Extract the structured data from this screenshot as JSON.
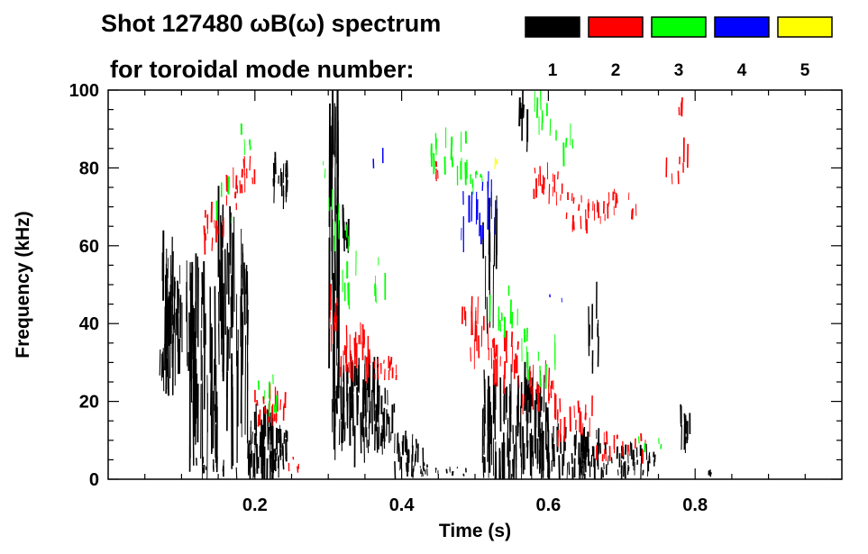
{
  "chart_data": {
    "type": "spectrogram",
    "title_line1": "Shot 127480 ωB(ω) spectrum",
    "title_line2": "for toroidal mode number:",
    "xlabel": "Time (s)",
    "ylabel": "Frequency (kHz)",
    "xlim": [
      0.0,
      1.0
    ],
    "ylim": [
      0,
      100
    ],
    "xticks": [
      0.2,
      0.4,
      0.6,
      0.8
    ],
    "xtick_labels": [
      "0.2",
      "0.4",
      "0.6",
      "0.8"
    ],
    "yticks": [
      0,
      20,
      40,
      60,
      80,
      100
    ],
    "ytick_labels": [
      "0",
      "20",
      "40",
      "60",
      "80",
      "100"
    ],
    "legend": [
      {
        "label": "1",
        "color": "#000000"
      },
      {
        "label": "2",
        "color": "#ff0000"
      },
      {
        "label": "3",
        "color": "#00ff00"
      },
      {
        "label": "4",
        "color": "#0000ff"
      },
      {
        "label": "5",
        "color": "#ffff00"
      }
    ],
    "series": [
      {
        "name": "n=1",
        "color": "#000000",
        "blobs": [
          {
            "t0": 0.07,
            "t1": 0.12,
            "f0": 28,
            "f1": 56,
            "density": 30
          },
          {
            "t0": 0.11,
            "t1": 0.16,
            "f0": 6,
            "f1": 56,
            "density": 20
          },
          {
            "t0": 0.15,
            "t1": 0.17,
            "f0": 30,
            "f1": 66,
            "density": 12
          },
          {
            "t0": 0.16,
            "t1": 0.19,
            "f0": 10,
            "f1": 58,
            "density": 10
          },
          {
            "t0": 0.12,
            "t1": 0.2,
            "f0": 0,
            "f1": 5,
            "density": 6
          },
          {
            "t0": 0.18,
            "t1": 0.19,
            "f0": 40,
            "f1": 62,
            "density": 5
          },
          {
            "t0": 0.19,
            "t1": 0.225,
            "f0": 2,
            "f1": 16,
            "density": 28
          },
          {
            "t0": 0.22,
            "t1": 0.245,
            "f0": 3,
            "f1": 12,
            "density": 12
          },
          {
            "t0": 0.225,
            "t1": 0.245,
            "f0": 72,
            "f1": 82,
            "density": 8
          },
          {
            "t0": 0.305,
            "t1": 0.37,
            "f0": 8,
            "f1": 28,
            "density": 36
          },
          {
            "t0": 0.365,
            "t1": 0.39,
            "f0": 10,
            "f1": 22,
            "density": 12
          },
          {
            "t0": 0.3,
            "t1": 0.315,
            "f0": 30,
            "f1": 98,
            "density": 12
          },
          {
            "t0": 0.31,
            "t1": 0.33,
            "f0": 58,
            "f1": 70,
            "density": 4
          },
          {
            "t0": 0.39,
            "t1": 0.43,
            "f0": 1,
            "f1": 10,
            "density": 16
          },
          {
            "t0": 0.425,
            "t1": 0.44,
            "f0": 1,
            "f1": 4,
            "density": 4
          },
          {
            "t0": 0.44,
            "t1": 0.5,
            "f0": 1,
            "f1": 3,
            "density": 5
          },
          {
            "t0": 0.51,
            "t1": 0.6,
            "f0": 2,
            "f1": 24,
            "density": 52
          },
          {
            "t0": 0.6,
            "t1": 0.67,
            "f0": 1,
            "f1": 12,
            "density": 30
          },
          {
            "t0": 0.67,
            "t1": 0.745,
            "f0": 1,
            "f1": 8,
            "density": 20
          },
          {
            "t0": 0.51,
            "t1": 0.53,
            "f0": 40,
            "f1": 68,
            "density": 5
          },
          {
            "t0": 0.56,
            "t1": 0.575,
            "f0": 85,
            "f1": 100,
            "density": 3
          },
          {
            "t0": 0.655,
            "t1": 0.67,
            "f0": 30,
            "f1": 52,
            "density": 3
          },
          {
            "t0": 0.665,
            "t1": 0.675,
            "f0": 36,
            "f1": 42,
            "density": 2
          },
          {
            "t0": 0.78,
            "t1": 0.795,
            "f0": 8,
            "f1": 18,
            "density": 6
          },
          {
            "t0": 0.815,
            "t1": 0.825,
            "f0": 1,
            "f1": 3,
            "density": 2
          }
        ]
      },
      {
        "name": "n=2",
        "color": "#ff0000",
        "blobs": [
          {
            "t0": 0.13,
            "t1": 0.16,
            "f0": 60,
            "f1": 70,
            "density": 6
          },
          {
            "t0": 0.16,
            "t1": 0.18,
            "f0": 70,
            "f1": 78,
            "density": 4
          },
          {
            "t0": 0.18,
            "t1": 0.2,
            "f0": 74,
            "f1": 82,
            "density": 4
          },
          {
            "t0": 0.2,
            "t1": 0.245,
            "f0": 15,
            "f1": 23,
            "density": 10
          },
          {
            "t0": 0.245,
            "t1": 0.26,
            "f0": 2,
            "f1": 6,
            "density": 2
          },
          {
            "t0": 0.3,
            "t1": 0.315,
            "f0": 36,
            "f1": 48,
            "density": 5
          },
          {
            "t0": 0.315,
            "t1": 0.36,
            "f0": 27,
            "f1": 38,
            "density": 12
          },
          {
            "t0": 0.36,
            "t1": 0.395,
            "f0": 26,
            "f1": 31,
            "density": 8
          },
          {
            "t0": 0.44,
            "t1": 0.46,
            "f0": 77,
            "f1": 82,
            "density": 2
          },
          {
            "t0": 0.48,
            "t1": 0.52,
            "f0": 32,
            "f1": 44,
            "density": 8
          },
          {
            "t0": 0.52,
            "t1": 0.56,
            "f0": 24,
            "f1": 36,
            "density": 10
          },
          {
            "t0": 0.56,
            "t1": 0.61,
            "f0": 18,
            "f1": 28,
            "density": 10
          },
          {
            "t0": 0.61,
            "t1": 0.66,
            "f0": 10,
            "f1": 20,
            "density": 8
          },
          {
            "t0": 0.66,
            "t1": 0.74,
            "f0": 5,
            "f1": 11,
            "density": 8
          },
          {
            "t0": 0.575,
            "t1": 0.62,
            "f0": 72,
            "f1": 80,
            "density": 8
          },
          {
            "t0": 0.62,
            "t1": 0.68,
            "f0": 64,
            "f1": 73,
            "density": 10
          },
          {
            "t0": 0.68,
            "t1": 0.72,
            "f0": 68,
            "f1": 74,
            "density": 6
          },
          {
            "t0": 0.76,
            "t1": 0.79,
            "f0": 76,
            "f1": 86,
            "density": 3
          },
          {
            "t0": 0.775,
            "t1": 0.785,
            "f0": 88,
            "f1": 98,
            "density": 2
          }
        ]
      },
      {
        "name": "n=3",
        "color": "#00ff00",
        "blobs": [
          {
            "t0": 0.14,
            "t1": 0.17,
            "f0": 66,
            "f1": 76,
            "density": 2
          },
          {
            "t0": 0.18,
            "t1": 0.2,
            "f0": 84,
            "f1": 92,
            "density": 2
          },
          {
            "t0": 0.2,
            "t1": 0.23,
            "f0": 18,
            "f1": 26,
            "density": 3
          },
          {
            "t0": 0.26,
            "t1": 0.3,
            "f0": 78,
            "f1": 82,
            "density": 1
          },
          {
            "t0": 0.3,
            "t1": 0.33,
            "f0": 60,
            "f1": 72,
            "density": 3
          },
          {
            "t0": 0.31,
            "t1": 0.39,
            "f0": 45,
            "f1": 56,
            "density": 5
          },
          {
            "t0": 0.44,
            "t1": 0.49,
            "f0": 78,
            "f1": 88,
            "density": 8
          },
          {
            "t0": 0.49,
            "t1": 0.51,
            "f0": 74,
            "f1": 80,
            "density": 3
          },
          {
            "t0": 0.52,
            "t1": 0.56,
            "f0": 38,
            "f1": 50,
            "density": 5
          },
          {
            "t0": 0.56,
            "t1": 0.62,
            "f0": 26,
            "f1": 38,
            "density": 5
          },
          {
            "t0": 0.58,
            "t1": 0.62,
            "f0": 88,
            "f1": 98,
            "density": 4
          },
          {
            "t0": 0.62,
            "t1": 0.65,
            "f0": 80,
            "f1": 90,
            "density": 2
          },
          {
            "t0": 0.72,
            "t1": 0.76,
            "f0": 8,
            "f1": 12,
            "density": 2
          }
        ]
      },
      {
        "name": "n=4",
        "color": "#0000ff",
        "blobs": [
          {
            "t0": 0.48,
            "t1": 0.53,
            "f0": 62,
            "f1": 76,
            "density": 8
          },
          {
            "t0": 0.36,
            "t1": 0.38,
            "f0": 78,
            "f1": 84,
            "density": 1
          },
          {
            "t0": 0.6,
            "t1": 0.62,
            "f0": 44,
            "f1": 48,
            "density": 1
          }
        ]
      },
      {
        "name": "n=5",
        "color": "#ffff00",
        "blobs": [
          {
            "t0": 0.52,
            "t1": 0.535,
            "f0": 76,
            "f1": 82,
            "density": 1
          }
        ]
      }
    ]
  }
}
